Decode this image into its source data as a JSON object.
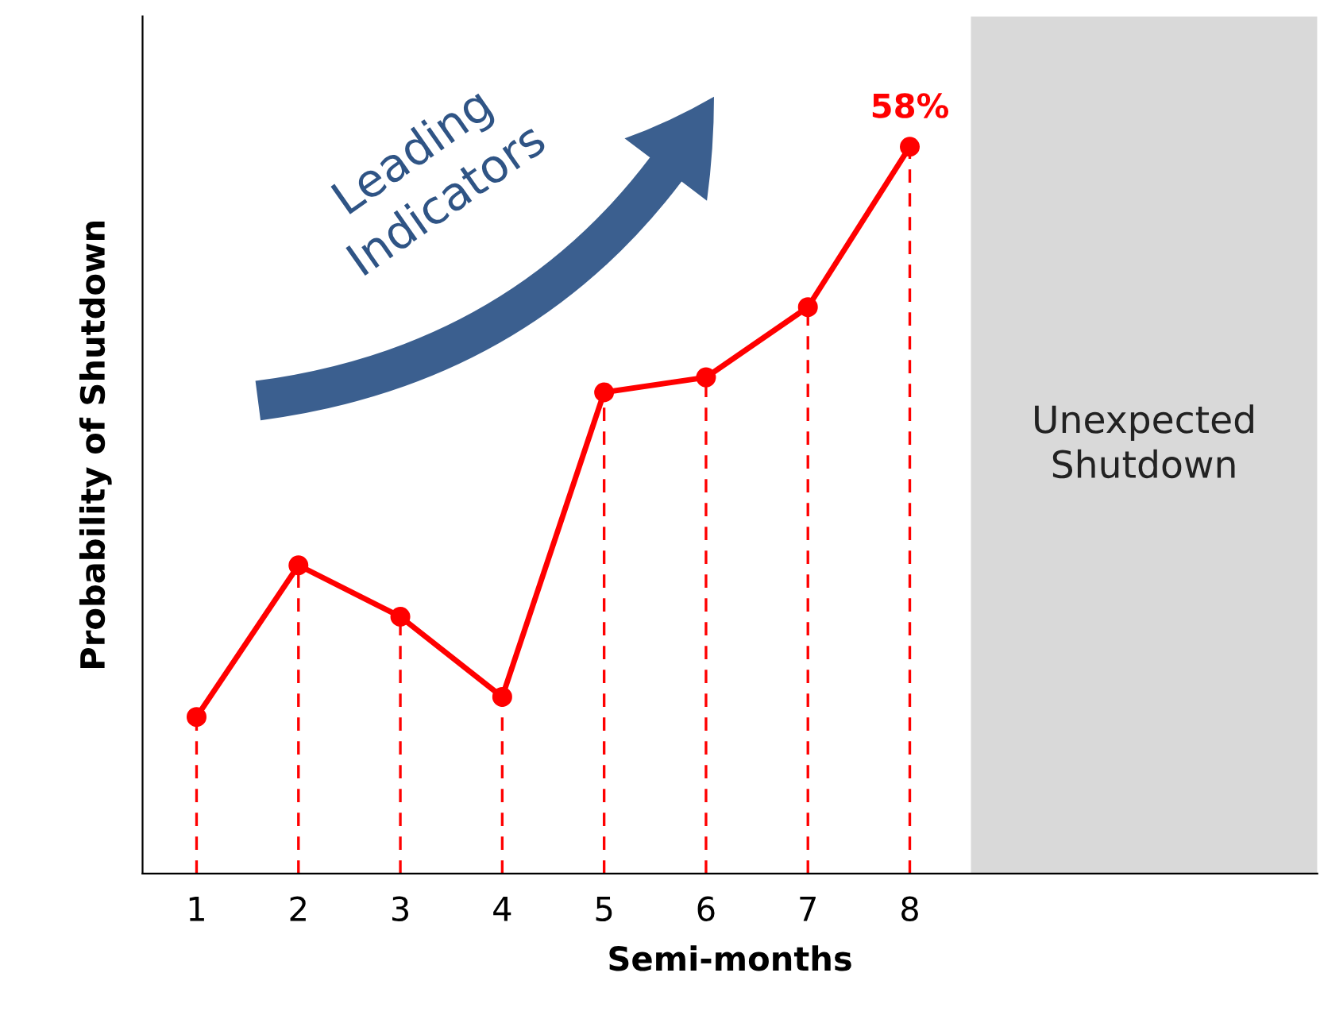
{
  "chart_data": {
    "type": "line",
    "xlabel": "Semi-months",
    "ylabel": "Probability of Shutdown",
    "x": [
      1,
      2,
      3,
      4,
      5,
      6,
      7,
      8
    ],
    "xlim": [
      0.47,
      12.0
    ],
    "ylim": [
      0,
      68.4
    ],
    "xticks": [
      1,
      2,
      3,
      4,
      5,
      6,
      7,
      8
    ],
    "tick_labels": "x",
    "grid": false,
    "legend": false,
    "series": [
      {
        "color": "#ff0000",
        "values": [
          12.5,
          24.6,
          20.5,
          14.1,
          38.4,
          39.6,
          45.2,
          58
        ],
        "value_labels": [
          null,
          null,
          null,
          null,
          null,
          null,
          null,
          "58%"
        ]
      },
      {
        "type": "lollipop",
        "color": "#ff0000",
        "line_style": "dashed",
        "marker": "circle",
        "values": [
          12.5,
          24.6,
          20.5,
          14.1,
          38.4,
          39.6,
          45.2,
          58
        ]
      }
    ],
    "bands": [
      {
        "axis": "x",
        "from": 8.6,
        "to": 12.0,
        "label": "Unexpected\nShutdown",
        "color": "#d9d9d9"
      }
    ],
    "annotations": [
      "Leading\nIndicators"
    ]
  }
}
